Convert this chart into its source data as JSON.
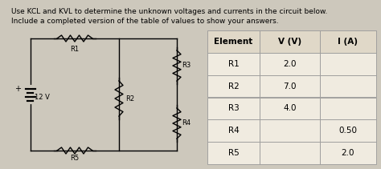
{
  "title_line1": "Use KCL and KVL to determine the unknown voltages and currents in the circuit below.",
  "title_line2": "Include a completed version of the table of values to show your answers.",
  "bg_color": "#cdc8bc",
  "table_headers": [
    "Element",
    "V (V)",
    "I (A)"
  ],
  "table_rows": [
    [
      "R1",
      "2.0",
      ""
    ],
    [
      "R2",
      "7.0",
      ""
    ],
    [
      "R3",
      "4.0",
      ""
    ],
    [
      "R4",
      "",
      "0.50"
    ],
    [
      "R5",
      "",
      "2.0"
    ]
  ],
  "voltage_label": "12 V",
  "font_size_title": 6.5,
  "font_size_table": 7.5,
  "font_size_circuit": 6.0
}
